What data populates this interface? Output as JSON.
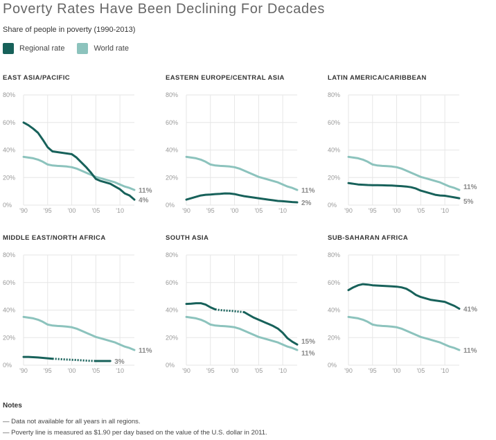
{
  "header": {
    "title": "Poverty Rates Have Been Declining For Decades",
    "subtitle": "Share of people in poverty (1990-2013)"
  },
  "legend": {
    "regional_label": "Regional rate",
    "world_label": "World rate"
  },
  "colors": {
    "regional": "#17615a",
    "world": "#8cc3bd",
    "grid": "#e6e6e6",
    "axis_text": "#999999",
    "end_label": "#888888"
  },
  "axes": {
    "y_ticks": [
      0,
      20,
      40,
      60,
      80
    ],
    "y_tick_labels": [
      "0%",
      "20%",
      "40%",
      "60%",
      "80%"
    ],
    "x_ticks": [
      1990,
      1995,
      2000,
      2005,
      2010
    ],
    "x_tick_labels": [
      "'90",
      "'95",
      "'00",
      "'05",
      "'10"
    ],
    "xlim": [
      1990,
      2013
    ],
    "ylim": [
      0,
      80
    ]
  },
  "chart_data": [
    {
      "type": "line",
      "title": "EAST ASIA/PACIFIC",
      "series": [
        {
          "name": "Regional rate",
          "x": [
            1990,
            1991,
            1992,
            1993,
            1994,
            1995,
            1996,
            1997,
            1998,
            1999,
            2000,
            2001,
            2002,
            2003,
            2004,
            2005,
            2006,
            2007,
            2008,
            2009,
            2010,
            2011,
            2012,
            2013
          ],
          "values": [
            60,
            58,
            55.5,
            52.5,
            47.5,
            42,
            39,
            38.5,
            38,
            37.5,
            37,
            34.5,
            31,
            27.5,
            23.5,
            19,
            17.5,
            16.5,
            15.5,
            13.5,
            11.5,
            8.5,
            7,
            4
          ],
          "end_label": "4%"
        },
        {
          "name": "World rate",
          "x": [
            1990,
            1991,
            1992,
            1993,
            1994,
            1995,
            1996,
            1997,
            1998,
            1999,
            2000,
            2001,
            2002,
            2003,
            2004,
            2005,
            2006,
            2007,
            2008,
            2009,
            2010,
            2011,
            2012,
            2013
          ],
          "values": [
            35,
            34.5,
            34,
            33,
            31.5,
            29.5,
            28.8,
            28.5,
            28.3,
            28,
            27.5,
            26.5,
            25,
            23.5,
            22,
            20.5,
            19.5,
            18.5,
            17.5,
            16.5,
            15,
            13.5,
            12.5,
            11
          ],
          "end_label": "11%"
        }
      ]
    },
    {
      "type": "line",
      "title": "EASTERN EUROPE/CENTRAL ASIA",
      "series": [
        {
          "name": "Regional rate",
          "x": [
            1990,
            1991,
            1992,
            1993,
            1994,
            1995,
            1996,
            1997,
            1998,
            1999,
            2000,
            2001,
            2002,
            2003,
            2004,
            2005,
            2006,
            2007,
            2008,
            2009,
            2010,
            2011,
            2012,
            2013
          ],
          "values": [
            4,
            5,
            6,
            7,
            7.5,
            7.7,
            8,
            8.2,
            8.5,
            8.4,
            8,
            7.2,
            6.5,
            6,
            5.5,
            5,
            4.5,
            4,
            3.5,
            3,
            2.8,
            2.5,
            2.2,
            2
          ],
          "end_label": "2%"
        },
        {
          "name": "World rate",
          "x": [
            1990,
            1991,
            1992,
            1993,
            1994,
            1995,
            1996,
            1997,
            1998,
            1999,
            2000,
            2001,
            2002,
            2003,
            2004,
            2005,
            2006,
            2007,
            2008,
            2009,
            2010,
            2011,
            2012,
            2013
          ],
          "values": [
            35,
            34.5,
            34,
            33,
            31.5,
            29.5,
            28.8,
            28.5,
            28.3,
            28,
            27.5,
            26.5,
            25,
            23.5,
            22,
            20.5,
            19.5,
            18.5,
            17.5,
            16.5,
            15,
            13.5,
            12.5,
            11
          ],
          "end_label": "11%"
        }
      ]
    },
    {
      "type": "line",
      "title": "LATIN AMERICA/CARIBBEAN",
      "series": [
        {
          "name": "Regional rate",
          "x": [
            1990,
            1991,
            1992,
            1993,
            1994,
            1995,
            1996,
            1997,
            1998,
            1999,
            2000,
            2001,
            2002,
            2003,
            2004,
            2005,
            2006,
            2007,
            2008,
            2009,
            2010,
            2011,
            2012,
            2013
          ],
          "values": [
            16,
            15.5,
            15,
            14.8,
            14.6,
            14.5,
            14.5,
            14.4,
            14.3,
            14.2,
            14,
            13.8,
            13.5,
            13,
            12,
            10.5,
            9.5,
            8.5,
            7.5,
            7,
            6.8,
            6.2,
            5.6,
            5
          ],
          "end_label": "5%"
        },
        {
          "name": "World rate",
          "x": [
            1990,
            1991,
            1992,
            1993,
            1994,
            1995,
            1996,
            1997,
            1998,
            1999,
            2000,
            2001,
            2002,
            2003,
            2004,
            2005,
            2006,
            2007,
            2008,
            2009,
            2010,
            2011,
            2012,
            2013
          ],
          "values": [
            35,
            34.5,
            34,
            33,
            31.5,
            29.5,
            28.8,
            28.5,
            28.3,
            28,
            27.5,
            26.5,
            25,
            23.5,
            22,
            20.5,
            19.5,
            18.5,
            17.5,
            16.5,
            15,
            13.5,
            12.5,
            11
          ],
          "end_label": "11%"
        }
      ]
    },
    {
      "type": "line",
      "title": "MIDDLE EAST/NORTH AFRICA",
      "series": [
        {
          "name": "Regional rate",
          "x": [
            1990,
            1991,
            1992,
            1993,
            1994,
            1995,
            1996,
            1997,
            1998,
            1999,
            2000,
            2001,
            2002,
            2003,
            2004,
            2005,
            2006,
            2007,
            2008
          ],
          "values": [
            6,
            6,
            5.8,
            5.6,
            5.3,
            5,
            4.7,
            4.5,
            4.3,
            4.1,
            3.9,
            3.7,
            3.5,
            3.3,
            3.1,
            3,
            3,
            3,
            3
          ],
          "dotted_ranges": [
            [
              1996,
              2005
            ]
          ],
          "end_label": "3%"
        },
        {
          "name": "World rate",
          "x": [
            1990,
            1991,
            1992,
            1993,
            1994,
            1995,
            1996,
            1997,
            1998,
            1999,
            2000,
            2001,
            2002,
            2003,
            2004,
            2005,
            2006,
            2007,
            2008,
            2009,
            2010,
            2011,
            2012,
            2013
          ],
          "values": [
            35,
            34.5,
            34,
            33,
            31.5,
            29.5,
            28.8,
            28.5,
            28.3,
            28,
            27.5,
            26.5,
            25,
            23.5,
            22,
            20.5,
            19.5,
            18.5,
            17.5,
            16.5,
            15,
            13.5,
            12.5,
            11
          ],
          "end_label": "11%"
        }
      ]
    },
    {
      "type": "line",
      "title": "SOUTH ASIA",
      "series": [
        {
          "name": "Regional rate",
          "x": [
            1990,
            1991,
            1992,
            1993,
            1994,
            1995,
            1996,
            1997,
            1998,
            1999,
            2000,
            2001,
            2002,
            2003,
            2004,
            2005,
            2006,
            2007,
            2008,
            2009,
            2010,
            2011,
            2012,
            2013
          ],
          "values": [
            44.5,
            44.7,
            45,
            45,
            44,
            42,
            40.5,
            40,
            39.7,
            39.5,
            39.2,
            38.8,
            38.5,
            36.5,
            34.5,
            33,
            31.5,
            30,
            28.5,
            26.5,
            23.5,
            19.5,
            17,
            15
          ],
          "dotted_ranges": [
            [
              1996,
              2002
            ]
          ],
          "end_label": "15%"
        },
        {
          "name": "World rate",
          "x": [
            1990,
            1991,
            1992,
            1993,
            1994,
            1995,
            1996,
            1997,
            1998,
            1999,
            2000,
            2001,
            2002,
            2003,
            2004,
            2005,
            2006,
            2007,
            2008,
            2009,
            2010,
            2011,
            2012,
            2013
          ],
          "values": [
            35,
            34.5,
            34,
            33,
            31.5,
            29.5,
            28.8,
            28.5,
            28.3,
            28,
            27.5,
            26.5,
            25,
            23.5,
            22,
            20.5,
            19.5,
            18.5,
            17.5,
            16.5,
            15,
            13.5,
            12.5,
            11
          ],
          "end_label": "11%"
        }
      ]
    },
    {
      "type": "line",
      "title": "SUB-SAHARAN AFRICA",
      "series": [
        {
          "name": "Regional rate",
          "x": [
            1990,
            1991,
            1992,
            1993,
            1994,
            1995,
            1996,
            1997,
            1998,
            1999,
            2000,
            2001,
            2002,
            2003,
            2004,
            2005,
            2006,
            2007,
            2008,
            2009,
            2010,
            2011,
            2012,
            2013
          ],
          "values": [
            54.5,
            56.5,
            58,
            58.8,
            58.5,
            58,
            57.8,
            57.6,
            57.4,
            57.2,
            57,
            56.5,
            55.5,
            53.5,
            51,
            49.5,
            48.5,
            47.5,
            47,
            46.5,
            46,
            44.5,
            43,
            41
          ],
          "end_label": "41%"
        },
        {
          "name": "World rate",
          "x": [
            1990,
            1991,
            1992,
            1993,
            1994,
            1995,
            1996,
            1997,
            1998,
            1999,
            2000,
            2001,
            2002,
            2003,
            2004,
            2005,
            2006,
            2007,
            2008,
            2009,
            2010,
            2011,
            2012,
            2013
          ],
          "values": [
            35,
            34.5,
            34,
            33,
            31.5,
            29.5,
            28.8,
            28.5,
            28.3,
            28,
            27.5,
            26.5,
            25,
            23.5,
            22,
            20.5,
            19.5,
            18.5,
            17.5,
            16.5,
            15,
            13.5,
            12.5,
            11
          ],
          "end_label": "11%"
        }
      ]
    }
  ],
  "notes": {
    "heading": "Notes",
    "lines": [
      "— Data not available for all years in all regions.",
      "— Poverty line is measured as $1.90 per day based on the value of the U.S. dollar in 2011."
    ]
  }
}
